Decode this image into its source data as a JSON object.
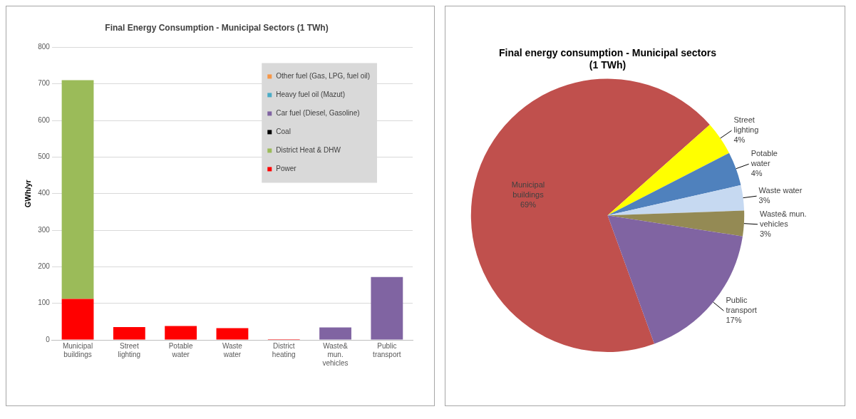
{
  "chart_data": [
    {
      "type": "bar",
      "title": "Final Energy Consumption - Municipal Sectors (1 TWh)",
      "ylabel": "GWh/yr",
      "categories": [
        "Municipal buildings",
        "Street lighting",
        "Potable water",
        "Waste water",
        "District heating",
        "Waste& mun. vehicles",
        "Public transport"
      ],
      "stacked": true,
      "series": [
        {
          "name": "Power",
          "color": "#ff0000",
          "values": [
            112,
            35,
            38,
            32,
            2,
            null,
            null
          ]
        },
        {
          "name": "District Heat & DHW",
          "color": "#9bbb59",
          "values": [
            598,
            null,
            null,
            null,
            null,
            null,
            null
          ]
        },
        {
          "name": "Coal",
          "color": "#000000",
          "values": [
            null,
            null,
            null,
            null,
            null,
            null,
            null
          ]
        },
        {
          "name": "Car fuel (Diesel, Gasoline)",
          "color": "#8064a2",
          "values": [
            null,
            null,
            null,
            null,
            null,
            34,
            172
          ]
        },
        {
          "name": "Heavy fuel oil (Mazut)",
          "color": "#4bacc6",
          "values": [
            null,
            null,
            null,
            null,
            null,
            null,
            null
          ]
        },
        {
          "name": "Other fuel (Gas, LPG, fuel oil)",
          "color": "#f79646",
          "values": [
            null,
            null,
            null,
            null,
            null,
            null,
            null
          ]
        }
      ],
      "ylim": [
        0,
        800
      ],
      "yticks": [
        0,
        100,
        200,
        300,
        400,
        500,
        600,
        700,
        800
      ],
      "grid": "y",
      "legend": "top right"
    },
    {
      "type": "pie",
      "title": "Final energy consumption - Municipal sectors (1 TWh)",
      "categories": [
        "Municipal buildings",
        "Street lighting",
        "Potable water",
        "Waste water",
        "Waste& mun. vehicles",
        "Public transport"
      ],
      "values": [
        69,
        4,
        4,
        3,
        3,
        17
      ],
      "value_labels": [
        "69%",
        "4%",
        "4%",
        "3%",
        "3%",
        "17%"
      ],
      "colors": [
        "#c0504d",
        "#ffff00",
        "#4f81bd",
        "#c6d9f1",
        "#948a54",
        "#8064a2"
      ],
      "data_labels": true,
      "legend": false
    }
  ]
}
